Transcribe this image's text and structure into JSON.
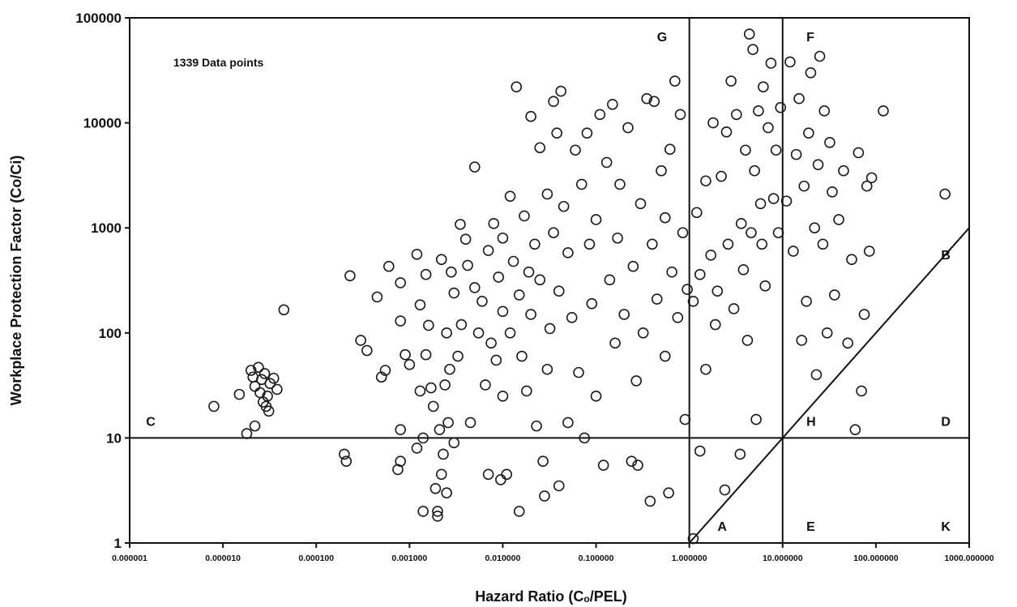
{
  "chart_data": {
    "type": "scatter",
    "title": "",
    "annotation": "1339 Data points",
    "xlabel": "Hazard Ratio (Cₒ/PEL)",
    "ylabel": "Workplace Protection Factor (Co/Ci)",
    "xscale": "log",
    "yscale": "log",
    "xlim": [
      1e-06,
      1000
    ],
    "ylim": [
      1,
      100000
    ],
    "x_tick_labels": [
      "0.000001",
      "0.000010",
      "0.000100",
      "0.001000",
      "0.010000",
      "0.100000",
      "1.000000",
      "10.000000",
      "100.000000",
      "1000.000000"
    ],
    "y_tick_labels": [
      "1",
      "10",
      "100",
      "1000",
      "10000",
      "100000"
    ],
    "reference_lines": {
      "horizontal_wpf": 10,
      "vertical_hazard_ratios": [
        1,
        10
      ],
      "diagonal": "WPF = Hazard Ratio"
    },
    "zone_labels": [
      "A",
      "B",
      "C",
      "D",
      "E",
      "F",
      "G",
      "H",
      "K"
    ],
    "series": [
      {
        "points": [
          [
            8e-06,
            20
          ],
          [
            1.5e-05,
            26
          ],
          [
            1.8e-05,
            11
          ],
          [
            2e-05,
            44
          ],
          [
            2.1e-05,
            38
          ],
          [
            2.2e-05,
            31
          ],
          [
            2.4e-05,
            47
          ],
          [
            2.5e-05,
            27
          ],
          [
            2.6e-05,
            36
          ],
          [
            2.7e-05,
            22
          ],
          [
            2.8e-05,
            41
          ],
          [
            3e-05,
            25
          ],
          [
            3.1e-05,
            18
          ],
          [
            3.2e-05,
            33
          ],
          [
            3.5e-05,
            37
          ],
          [
            3.8e-05,
            29
          ],
          [
            4.5e-05,
            166
          ],
          [
            2.2e-05,
            13
          ],
          [
            2.9e-05,
            20
          ],
          [
            0.00023,
            350
          ],
          [
            0.0002,
            7
          ],
          [
            0.00021,
            6
          ],
          [
            0.0003,
            85
          ],
          [
            0.00035,
            68
          ],
          [
            0.00045,
            220
          ],
          [
            0.0005,
            38
          ],
          [
            0.00055,
            44
          ],
          [
            0.0006,
            430
          ],
          [
            0.0008,
            300
          ],
          [
            0.0008,
            12
          ],
          [
            0.0008,
            6
          ],
          [
            0.00075,
            5
          ],
          [
            0.0008,
            130
          ],
          [
            0.0009,
            62
          ],
          [
            0.001,
            50
          ],
          [
            0.0012,
            560
          ],
          [
            0.0012,
            8
          ],
          [
            0.0013,
            28
          ],
          [
            0.0013,
            185
          ],
          [
            0.0014,
            2
          ],
          [
            0.0014,
            10
          ],
          [
            0.0015,
            360
          ],
          [
            0.0015,
            62
          ],
          [
            0.0016,
            118
          ],
          [
            0.0017,
            30
          ],
          [
            0.0018,
            20
          ],
          [
            0.0019,
            3.3
          ],
          [
            0.002,
            1.8
          ],
          [
            0.002,
            2
          ],
          [
            0.0021,
            12
          ],
          [
            0.0022,
            4.5
          ],
          [
            0.0022,
            500
          ],
          [
            0.0023,
            7
          ],
          [
            0.0024,
            32
          ],
          [
            0.0025,
            100
          ],
          [
            0.0025,
            3
          ],
          [
            0.0026,
            14
          ],
          [
            0.0027,
            45
          ],
          [
            0.0028,
            380
          ],
          [
            0.003,
            9
          ],
          [
            0.003,
            240
          ],
          [
            0.0033,
            60
          ],
          [
            0.0035,
            1080
          ],
          [
            0.0036,
            120
          ],
          [
            0.004,
            780
          ],
          [
            0.0042,
            440
          ],
          [
            0.0045,
            14
          ],
          [
            0.005,
            3800
          ],
          [
            0.005,
            270
          ],
          [
            0.0055,
            100
          ],
          [
            0.006,
            200
          ],
          [
            0.0065,
            32
          ],
          [
            0.007,
            4.5
          ],
          [
            0.007,
            610
          ],
          [
            0.0075,
            80
          ],
          [
            0.008,
            1100
          ],
          [
            0.0085,
            55
          ],
          [
            0.009,
            340
          ],
          [
            0.0095,
            4
          ],
          [
            0.01,
            25
          ],
          [
            0.01,
            160
          ],
          [
            0.01,
            800
          ],
          [
            0.011,
            4.5
          ],
          [
            0.012,
            2000
          ],
          [
            0.012,
            100
          ],
          [
            0.013,
            480
          ],
          [
            0.014,
            22000
          ],
          [
            0.015,
            2
          ],
          [
            0.015,
            230
          ],
          [
            0.016,
            60
          ],
          [
            0.017,
            1300
          ],
          [
            0.018,
            28
          ],
          [
            0.019,
            380
          ],
          [
            0.02,
            11500
          ],
          [
            0.02,
            150
          ],
          [
            0.022,
            700
          ],
          [
            0.023,
            13
          ],
          [
            0.025,
            5800
          ],
          [
            0.025,
            320
          ],
          [
            0.027,
            6
          ],
          [
            0.028,
            2.8
          ],
          [
            0.03,
            2100
          ],
          [
            0.03,
            45
          ],
          [
            0.032,
            110
          ],
          [
            0.035,
            16000
          ],
          [
            0.035,
            900
          ],
          [
            0.038,
            8000
          ],
          [
            0.04,
            3.5
          ],
          [
            0.04,
            250
          ],
          [
            0.042,
            20000
          ],
          [
            0.045,
            1600
          ],
          [
            0.05,
            14
          ],
          [
            0.05,
            580
          ],
          [
            0.055,
            140
          ],
          [
            0.06,
            5500
          ],
          [
            0.065,
            42
          ],
          [
            0.07,
            2600
          ],
          [
            0.075,
            10
          ],
          [
            0.08,
            8000
          ],
          [
            0.085,
            700
          ],
          [
            0.09,
            190
          ],
          [
            0.1,
            1200
          ],
          [
            0.1,
            25
          ],
          [
            0.11,
            12000
          ],
          [
            0.12,
            5.5
          ],
          [
            0.13,
            4200
          ],
          [
            0.14,
            320
          ],
          [
            0.15,
            15000
          ],
          [
            0.16,
            80
          ],
          [
            0.17,
            800
          ],
          [
            0.18,
            2600
          ],
          [
            0.2,
            150
          ],
          [
            0.22,
            9000
          ],
          [
            0.24,
            6
          ],
          [
            0.25,
            430
          ],
          [
            0.27,
            35
          ],
          [
            0.28,
            5.5
          ],
          [
            0.3,
            1700
          ],
          [
            0.32,
            100
          ],
          [
            0.35,
            17000
          ],
          [
            0.38,
            2.5
          ],
          [
            0.4,
            700
          ],
          [
            0.42,
            16000
          ],
          [
            0.45,
            210
          ],
          [
            0.5,
            3500
          ],
          [
            0.55,
            60
          ],
          [
            0.55,
            1250
          ],
          [
            0.6,
            3
          ],
          [
            0.62,
            5600
          ],
          [
            0.65,
            380
          ],
          [
            0.7,
            25000
          ],
          [
            0.75,
            140
          ],
          [
            0.8,
            12000
          ],
          [
            0.85,
            900
          ],
          [
            0.9,
            15
          ],
          [
            0.95,
            260
          ],
          [
            1.1,
            1.1
          ],
          [
            1.1,
            200
          ],
          [
            1.2,
            1400
          ],
          [
            1.3,
            7.5
          ],
          [
            1.3,
            360
          ],
          [
            1.5,
            2800
          ],
          [
            1.5,
            45
          ],
          [
            1.7,
            550
          ],
          [
            1.8,
            10000
          ],
          [
            1.9,
            120
          ],
          [
            2,
            250
          ],
          [
            2.2,
            3100
          ],
          [
            2.4,
            3.2
          ],
          [
            2.5,
            8200
          ],
          [
            2.6,
            700
          ],
          [
            2.8,
            25000
          ],
          [
            3,
            170
          ],
          [
            3.2,
            12000
          ],
          [
            3.5,
            7
          ],
          [
            3.6,
            1100
          ],
          [
            3.8,
            400
          ],
          [
            4,
            5500
          ],
          [
            4.2,
            85
          ],
          [
            4.4,
            70000
          ],
          [
            4.6,
            900
          ],
          [
            4.8,
            50000
          ],
          [
            5,
            3500
          ],
          [
            5.2,
            15
          ],
          [
            5.5,
            13000
          ],
          [
            5.8,
            1700
          ],
          [
            6,
            700
          ],
          [
            6.2,
            22000
          ],
          [
            6.5,
            280
          ],
          [
            7,
            9000
          ],
          [
            7.5,
            37000
          ],
          [
            8,
            1900
          ],
          [
            8.5,
            5500
          ],
          [
            9,
            900
          ],
          [
            9.5,
            14000
          ],
          [
            11,
            1800
          ],
          [
            12,
            38000
          ],
          [
            13,
            600
          ],
          [
            14,
            5000
          ],
          [
            15,
            17000
          ],
          [
            16,
            85
          ],
          [
            17,
            2500
          ],
          [
            18,
            200
          ],
          [
            19,
            8000
          ],
          [
            20,
            30000
          ],
          [
            22,
            1000
          ],
          [
            23,
            40
          ],
          [
            24,
            4000
          ],
          [
            25,
            43000
          ],
          [
            27,
            700
          ],
          [
            28,
            13000
          ],
          [
            30,
            100
          ],
          [
            32,
            6500
          ],
          [
            34,
            2200
          ],
          [
            36,
            230
          ],
          [
            40,
            1200
          ],
          [
            45,
            3500
          ],
          [
            50,
            80
          ],
          [
            55,
            500
          ],
          [
            60,
            12
          ],
          [
            65,
            5200
          ],
          [
            70,
            28
          ],
          [
            75,
            150
          ],
          [
            80,
            2500
          ],
          [
            85,
            600
          ],
          [
            90,
            3000
          ],
          [
            120,
            13000
          ],
          [
            550,
            2100
          ]
        ]
      }
    ]
  }
}
